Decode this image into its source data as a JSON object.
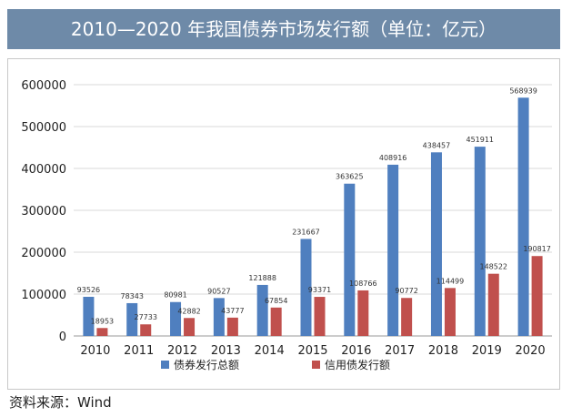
{
  "title": "2010—2020 年我国债券市场发行额（单位：亿元）",
  "source": "资料来源：Wind",
  "chart_data": {
    "type": "bar",
    "title": "2010—2020 年我国债券市场发行额（单位：亿元）",
    "categories": [
      "2010",
      "2011",
      "2012",
      "2013",
      "2014",
      "2015",
      "2016",
      "2017",
      "2018",
      "2019",
      "2020"
    ],
    "series": [
      {
        "name": "债券发行总额",
        "color": "#4f7fbf",
        "values": [
          93526,
          78343,
          80981,
          90527,
          121888,
          231667,
          363625,
          408916,
          438457,
          451911,
          568939
        ],
        "labels": [
          "93526",
          "78343",
          "80981",
          "90527",
          "121888",
          "231667",
          "363625",
          "408916",
          "438457",
          "451911",
          "568939"
        ]
      },
      {
        "name": "信用债发行额",
        "color": "#c0504d",
        "values": [
          18953,
          27733,
          42882,
          43777,
          67854,
          93371,
          108766,
          90772,
          114499,
          148522,
          190817
        ],
        "labels": [
          "18953",
          "27733",
          "42882",
          "43777",
          "67854",
          "93371",
          "108766",
          "90772",
          "114499",
          "148522",
          "190817"
        ]
      }
    ],
    "ylim": [
      0,
      600000
    ],
    "yticks": [
      "0",
      "100000",
      "200000",
      "300000",
      "400000",
      "500000",
      "600000"
    ],
    "grid": true,
    "legend": "bottom"
  }
}
